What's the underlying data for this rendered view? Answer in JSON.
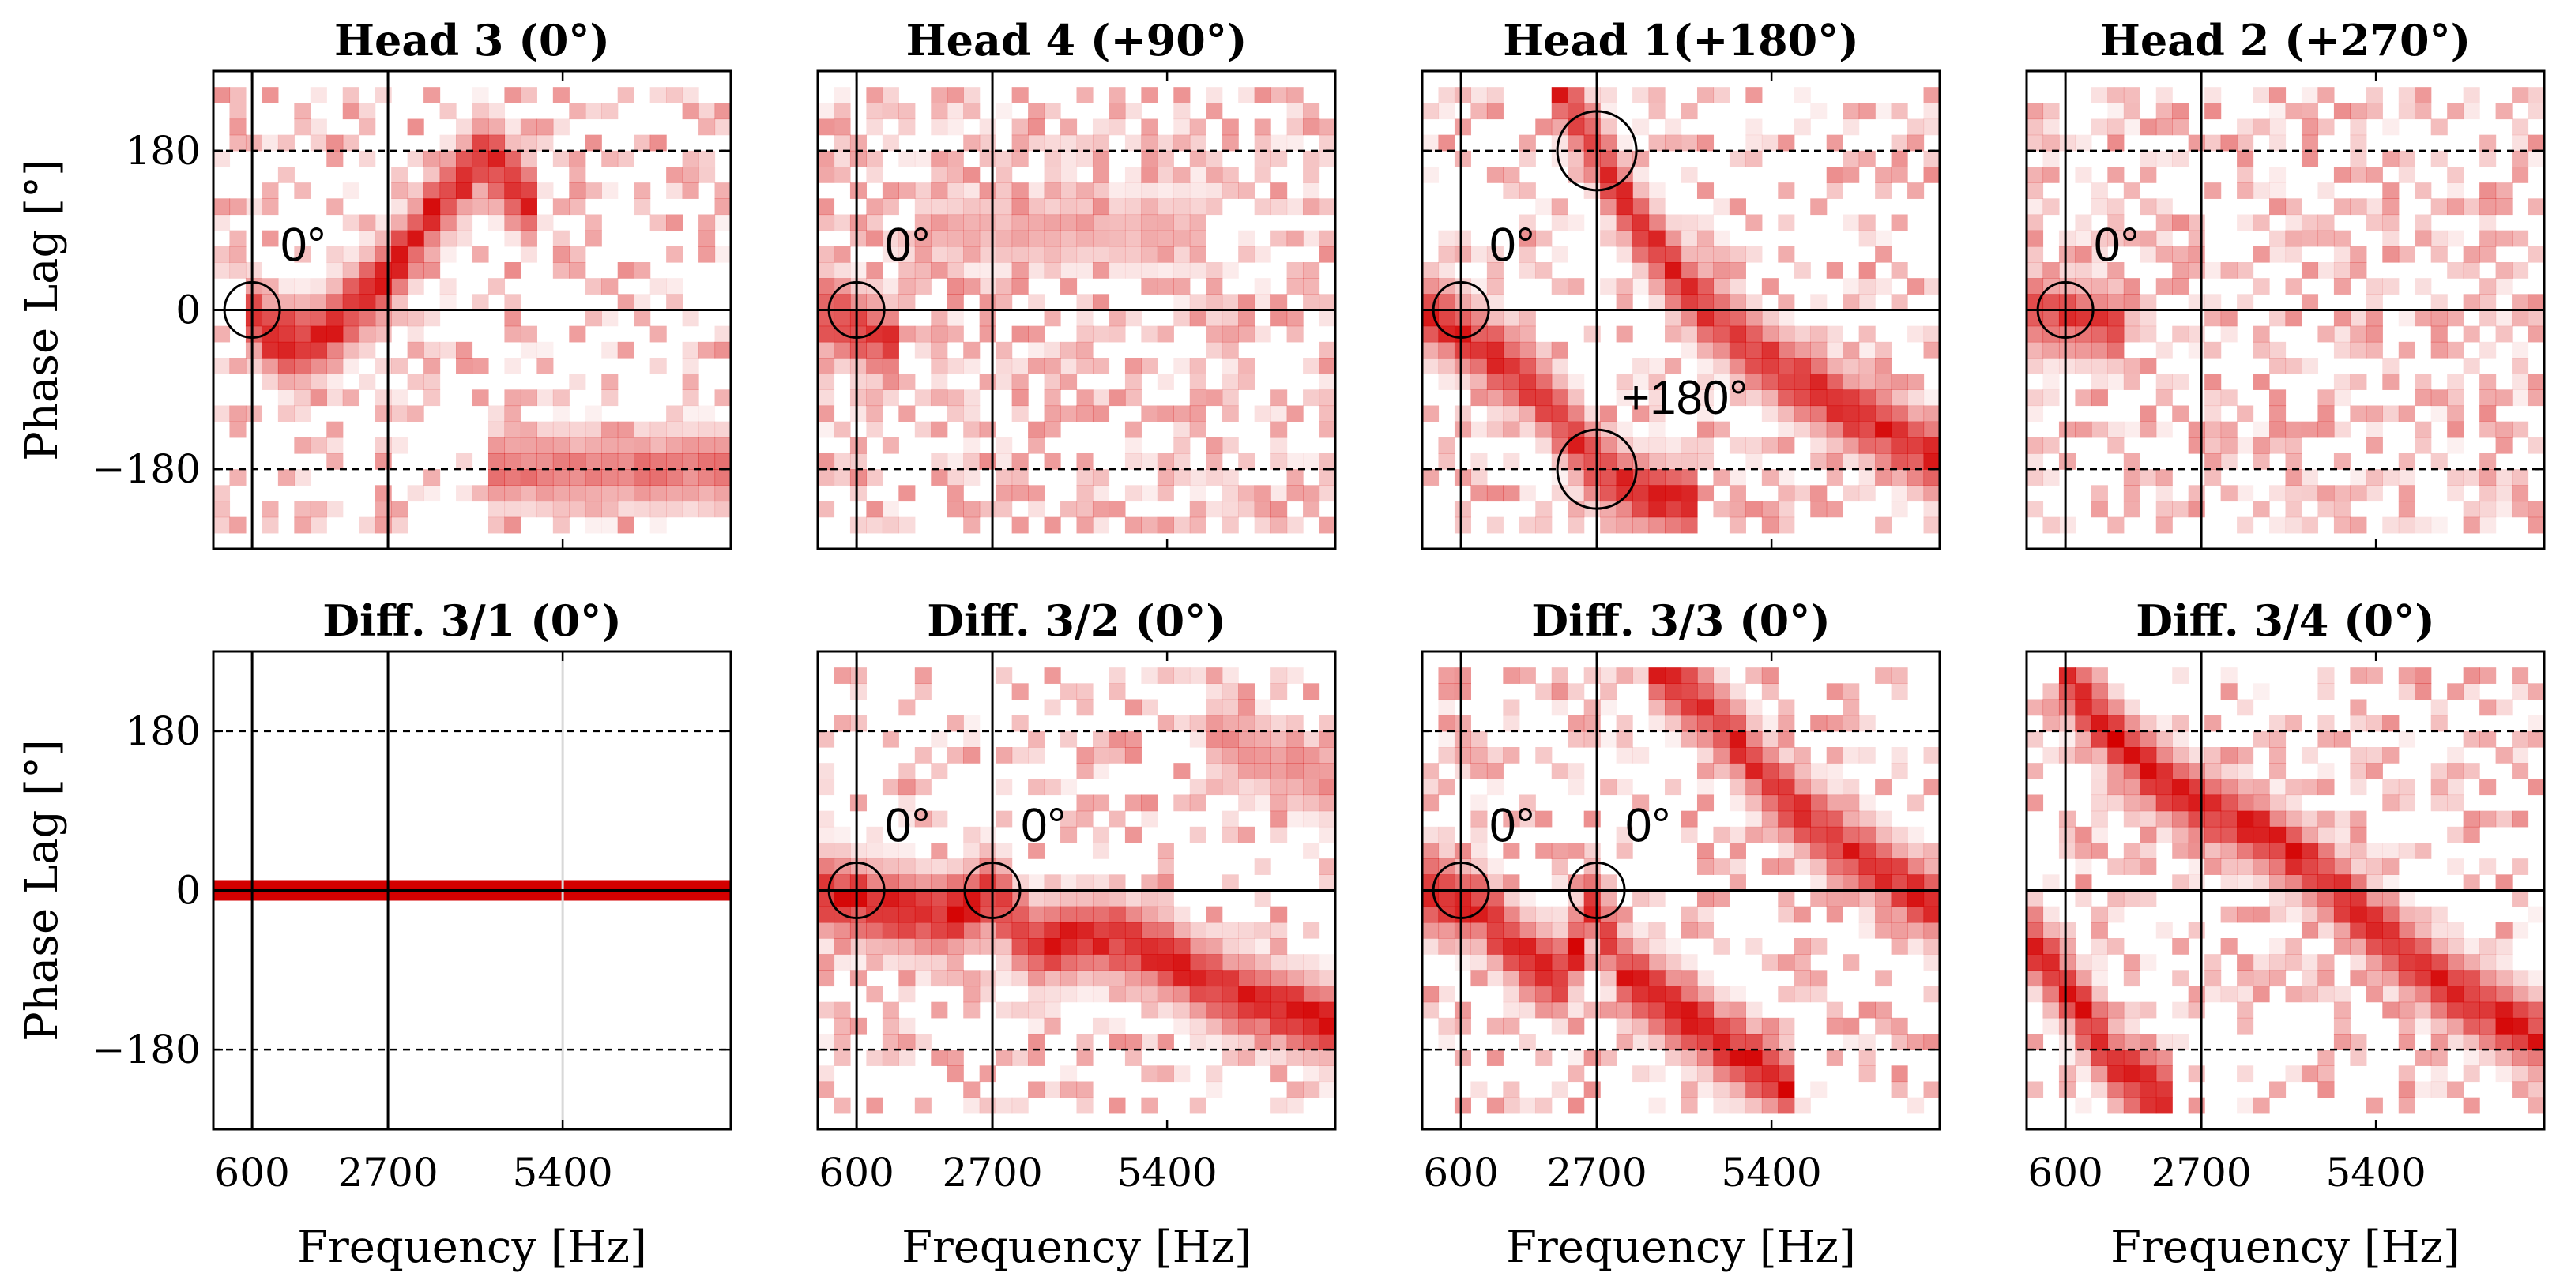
{
  "colors": {
    "heat": "#d40000",
    "axes": "#000000",
    "background": "#ffffff"
  },
  "chart_data": [
    {
      "type": "heatmap",
      "title": "Head 3 (0°)",
      "row": 0,
      "col": 0,
      "xlabel": "",
      "ylabel": "Phase Lag [°]",
      "xlim": [
        0,
        8000
      ],
      "ylim": [
        -270,
        270
      ],
      "xticks": [
        600,
        2700,
        5400
      ],
      "xtick_labels": [],
      "yticks": [
        180,
        0,
        -180
      ],
      "ytick_labels": [
        "180",
        "0",
        "−180"
      ],
      "vlines": [
        600,
        2700
      ],
      "hline": 0,
      "dashed_hlines": [
        180,
        -180
      ],
      "ridges": [
        {
          "pts": [
            [
              500,
              0
            ],
            [
              900,
              -30
            ],
            [
              1500,
              -40
            ],
            [
              2100,
              0
            ],
            [
              2700,
              40
            ],
            [
              3400,
              110
            ],
            [
              4200,
              180
            ],
            [
              5000,
              110
            ]
          ],
          "w": 1
        },
        {
          "pts": [
            [
              4200,
              -180
            ],
            [
              8000,
              -180
            ]
          ],
          "w": 0.6
        }
      ],
      "noise": 0.4,
      "circles": [
        {
          "f": 600,
          "phase": 0,
          "label": "0°"
        }
      ]
    },
    {
      "type": "heatmap",
      "title": "Head 4 (+90°)",
      "row": 0,
      "col": 1,
      "xlabel": "",
      "ylabel": "",
      "xlim": [
        0,
        8000
      ],
      "ylim": [
        -270,
        270
      ],
      "xticks": [
        600,
        2700,
        5400
      ],
      "xtick_labels": [],
      "yticks": [
        180,
        0,
        -180
      ],
      "ytick_labels": [],
      "vlines": [
        600,
        2700
      ],
      "hline": 0,
      "dashed_hlines": [
        180,
        -180
      ],
      "ridges": [
        {
          "pts": [
            [
              0,
              0
            ],
            [
              1200,
              -40
            ]
          ],
          "w": 0.9
        },
        {
          "pts": [
            [
              1500,
              90
            ],
            [
              6000,
              90
            ]
          ],
          "w": 0.35
        }
      ],
      "noise": 0.65,
      "circles": [
        {
          "f": 600,
          "phase": 0,
          "label": "0°"
        }
      ]
    },
    {
      "type": "heatmap",
      "title": "Head 1(+180°)",
      "row": 0,
      "col": 2,
      "xlabel": "",
      "ylabel": "",
      "xlim": [
        0,
        8000
      ],
      "ylim": [
        -270,
        270
      ],
      "xticks": [
        600,
        2700,
        5400
      ],
      "xtick_labels": [],
      "yticks": [
        180,
        0,
        -180
      ],
      "ytick_labels": [],
      "vlines": [
        600,
        2700
      ],
      "hline": 0,
      "dashed_hlines": [
        180,
        -180
      ],
      "ridges": [
        {
          "pts": [
            [
              0,
              0
            ],
            [
              900,
              -40
            ],
            [
              1800,
              -90
            ],
            [
              2700,
              -180
            ],
            [
              3400,
              -210
            ],
            [
              4200,
              -220
            ]
          ],
          "w": 0.95
        },
        {
          "pts": [
            [
              2000,
              260
            ],
            [
              2700,
              180
            ],
            [
              3300,
              100
            ],
            [
              4000,
              30
            ],
            [
              5000,
              -40
            ],
            [
              6000,
              -90
            ],
            [
              7000,
              -130
            ],
            [
              8000,
              -170
            ]
          ],
          "w": 0.95
        }
      ],
      "noise": 0.45,
      "circles": [
        {
          "f": 600,
          "phase": 0,
          "label": "0°"
        },
        {
          "f": 2700,
          "phase": 180,
          "label": ""
        },
        {
          "f": 2700,
          "phase": -180,
          "label": "+180°"
        }
      ]
    },
    {
      "type": "heatmap",
      "title": "Head 2 (+270°)",
      "row": 0,
      "col": 3,
      "xlabel": "",
      "ylabel": "",
      "xlim": [
        0,
        8000
      ],
      "ylim": [
        -270,
        270
      ],
      "xticks": [
        600,
        2700,
        5400
      ],
      "xtick_labels": [],
      "yticks": [
        180,
        0,
        -180
      ],
      "ytick_labels": [],
      "vlines": [
        600,
        2700
      ],
      "hline": 0,
      "dashed_hlines": [
        180,
        -180
      ],
      "ridges": [
        {
          "pts": [
            [
              0,
              0
            ],
            [
              1500,
              -20
            ]
          ],
          "w": 0.85
        }
      ],
      "noise": 0.6,
      "circles": [
        {
          "f": 600,
          "phase": 0,
          "label": "0°"
        }
      ]
    },
    {
      "type": "heatmap",
      "title": "Diff. 3/1 (0°)",
      "row": 1,
      "col": 0,
      "xlabel": "Frequency [Hz]",
      "ylabel": "Phase Lag [°]",
      "xlim": [
        0,
        8000
      ],
      "ylim": [
        -270,
        270
      ],
      "xticks": [
        600,
        2700,
        5400
      ],
      "xtick_labels": [
        "600",
        "2700",
        "5400"
      ],
      "yticks": [
        180,
        0,
        -180
      ],
      "ytick_labels": [
        "180",
        "0",
        "−180"
      ],
      "vlines": [
        600,
        2700
      ],
      "hline": 0,
      "dashed_hlines": [
        180,
        -180
      ],
      "solid_band": 0,
      "grid_vline": 5400,
      "circles": []
    },
    {
      "type": "heatmap",
      "title": "Diff. 3/2 (0°)",
      "row": 1,
      "col": 1,
      "xlabel": "Frequency [Hz]",
      "ylabel": "",
      "xlim": [
        0,
        8000
      ],
      "ylim": [
        -270,
        270
      ],
      "xticks": [
        600,
        2700,
        5400
      ],
      "xtick_labels": [
        "600",
        "2700",
        "5400"
      ],
      "yticks": [
        180,
        0,
        -180
      ],
      "ytick_labels": [],
      "vlines": [
        600,
        2700
      ],
      "hline": 0,
      "dashed_hlines": [
        180,
        -180
      ],
      "ridges": [
        {
          "pts": [
            [
              0,
              0
            ],
            [
              1000,
              -20
            ],
            [
              2000,
              -30
            ],
            [
              2700,
              0
            ],
            [
              3300,
              -60
            ],
            [
              4500,
              -50
            ],
            [
              5500,
              -80
            ],
            [
              6500,
              -120
            ],
            [
              8000,
              -150
            ]
          ],
          "w": 1
        },
        {
          "pts": [
            [
              6000,
              180
            ],
            [
              8000,
              120
            ]
          ],
          "w": 0.5
        }
      ],
      "noise": 0.4,
      "circles": [
        {
          "f": 600,
          "phase": 0,
          "label": "0°"
        },
        {
          "f": 2700,
          "phase": 0,
          "label": "0°"
        }
      ]
    },
    {
      "type": "heatmap",
      "title": "Diff. 3/3 (0°)",
      "row": 1,
      "col": 2,
      "xlabel": "Frequency [Hz]",
      "ylabel": "",
      "xlim": [
        0,
        8000
      ],
      "ylim": [
        -270,
        270
      ],
      "xticks": [
        600,
        2700,
        5400
      ],
      "xtick_labels": [
        "600",
        "2700",
        "5400"
      ],
      "yticks": [
        180,
        0,
        -180
      ],
      "ytick_labels": [],
      "vlines": [
        600,
        2700
      ],
      "hline": 0,
      "dashed_hlines": [
        180,
        -180
      ],
      "ridges": [
        {
          "pts": [
            [
              0,
              0
            ],
            [
              900,
              -20
            ],
            [
              1500,
              -70
            ],
            [
              2200,
              -100
            ],
            [
              2700,
              0
            ],
            [
              3000,
              -90
            ],
            [
              4000,
              -140
            ],
            [
              5000,
              -190
            ],
            [
              5800,
              -230
            ]
          ],
          "w": 1
        },
        {
          "pts": [
            [
              3500,
              260
            ],
            [
              4500,
              200
            ],
            [
              5500,
              110
            ],
            [
              6500,
              50
            ],
            [
              8000,
              -20
            ]
          ],
          "w": 0.95
        }
      ],
      "noise": 0.4,
      "circles": [
        {
          "f": 600,
          "phase": 0,
          "label": "0°"
        },
        {
          "f": 2700,
          "phase": 0,
          "label": "0°"
        }
      ]
    },
    {
      "type": "heatmap",
      "title": "Diff. 3/4 (0°)",
      "row": 1,
      "col": 3,
      "xlabel": "Frequency [Hz]",
      "ylabel": "",
      "xlim": [
        0,
        8000
      ],
      "ylim": [
        -270,
        270
      ],
      "xticks": [
        600,
        2700,
        5400
      ],
      "xtick_labels": [
        "600",
        "2700",
        "5400"
      ],
      "yticks": [
        180,
        0,
        -180
      ],
      "ytick_labels": [],
      "vlines": [
        600,
        2700
      ],
      "hline": 0,
      "dashed_hlines": [
        180,
        -180
      ],
      "ridges": [
        {
          "pts": [
            [
              500,
              250
            ],
            [
              1500,
              160
            ],
            [
              2500,
              100
            ],
            [
              3500,
              70
            ],
            [
              4500,
              20
            ],
            [
              5500,
              -50
            ],
            [
              6500,
              -110
            ],
            [
              8000,
              -170
            ]
          ],
          "w": 1
        },
        {
          "pts": [
            [
              0,
              -50
            ],
            [
              700,
              -120
            ],
            [
              1400,
              -200
            ],
            [
              2200,
              -240
            ]
          ],
          "w": 1
        }
      ],
      "noise": 0.45,
      "circles": []
    }
  ]
}
